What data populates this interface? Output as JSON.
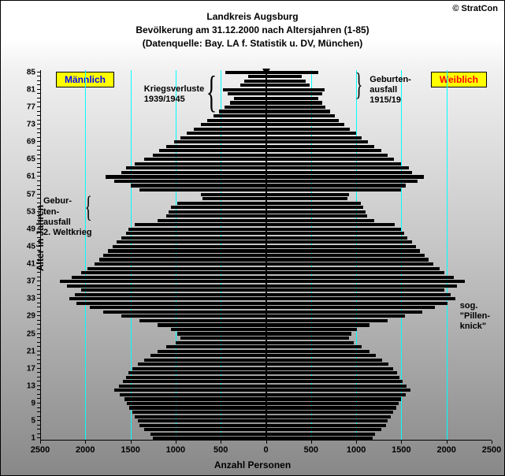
{
  "copyright": "© StratCon",
  "titles": {
    "line1": "Landkreis Augsburg",
    "line2": "Bevölkerung am 31.12.2000 nach Altersjahren (1-85)",
    "line3": "(Datenquelle: Bay. LA f. Statistik u. DV, München)"
  },
  "axis": {
    "xlabel": "Anzahl Personen",
    "ylabel": "Alter in Jahren",
    "xmax": 2500,
    "xticks": [
      2500,
      2000,
      1500,
      1000,
      500,
      0,
      500,
      1000,
      1500,
      2000,
      2500
    ],
    "xtick_positions": [
      -2500,
      -2000,
      -1500,
      -1000,
      -500,
      0,
      500,
      1000,
      1500,
      2000,
      2500
    ],
    "gridlines": [
      -2000,
      -1500,
      -1000,
      -500,
      500,
      1000,
      1500,
      2000
    ],
    "yticks": [
      1,
      5,
      9,
      13,
      17,
      21,
      25,
      29,
      33,
      37,
      41,
      45,
      49,
      53,
      57,
      61,
      65,
      69,
      73,
      77,
      81,
      85
    ],
    "ymax": 85
  },
  "legend": {
    "male": "Männlich",
    "female": "Weiblich"
  },
  "annotations": {
    "kriegsverluste": "Kriegsverluste\n1939/1945",
    "geburten_ww2": "Gebur-\nten-\nausfall\n2. Weltkrieg",
    "geburten_1915": "Geburten-\nausfall\n1915/19",
    "pillenknick": "sog.\n\"Pillen-\nknick\""
  },
  "colors": {
    "bar": "#000000",
    "grid": "#00ffff",
    "legend_bg": "#ffff00",
    "male_text": "#0000ff",
    "female_text": "#ff0000"
  },
  "bar_gap_ratio": 0.25,
  "male": [
    1250,
    1280,
    1350,
    1400,
    1420,
    1450,
    1480,
    1510,
    1540,
    1570,
    1620,
    1680,
    1630,
    1580,
    1550,
    1520,
    1480,
    1420,
    1350,
    1280,
    1200,
    1100,
    1000,
    950,
    980,
    1050,
    1200,
    1400,
    1600,
    1800,
    1950,
    2100,
    2180,
    2120,
    2050,
    2200,
    2280,
    2150,
    2050,
    1980,
    1900,
    1850,
    1800,
    1750,
    1700,
    1650,
    1600,
    1550,
    1520,
    1450,
    1200,
    1100,
    1080,
    1050,
    980,
    700,
    720,
    1400,
    1500,
    1680,
    1780,
    1600,
    1550,
    1450,
    1350,
    1250,
    1180,
    1100,
    1020,
    950,
    880,
    800,
    720,
    650,
    580,
    520,
    460,
    400,
    350,
    420,
    480,
    280,
    240,
    200,
    450
  ],
  "female": [
    1180,
    1210,
    1280,
    1330,
    1350,
    1380,
    1410,
    1440,
    1470,
    1500,
    1550,
    1600,
    1560,
    1510,
    1480,
    1450,
    1410,
    1360,
    1290,
    1220,
    1150,
    1060,
    970,
    920,
    950,
    1010,
    1150,
    1350,
    1540,
    1730,
    1870,
    2010,
    2100,
    2050,
    1980,
    2120,
    2200,
    2080,
    1980,
    1920,
    1850,
    1800,
    1760,
    1710,
    1660,
    1620,
    1570,
    1530,
    1500,
    1430,
    1200,
    1120,
    1100,
    1080,
    1050,
    900,
    920,
    1500,
    1550,
    1680,
    1750,
    1620,
    1580,
    1500,
    1420,
    1350,
    1280,
    1200,
    1130,
    1060,
    1000,
    930,
    870,
    810,
    760,
    710,
    660,
    620,
    580,
    620,
    650,
    480,
    440,
    400,
    580
  ]
}
